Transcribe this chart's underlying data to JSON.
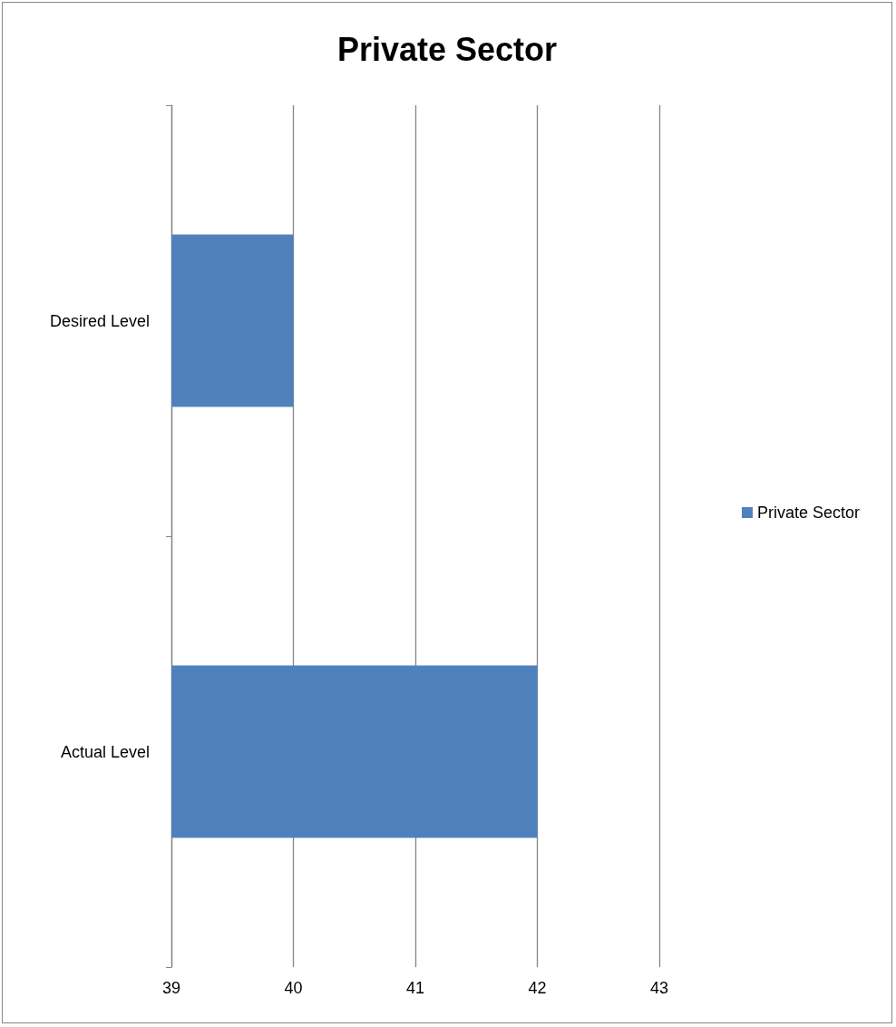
{
  "chart_data": {
    "type": "bar",
    "title": "Private Sector",
    "orientation": "horizontal",
    "categories": [
      "Desired Level",
      "Actual Level"
    ],
    "series": [
      {
        "name": "Private Sector",
        "color": "#4f81bd",
        "values": [
          40,
          42
        ]
      }
    ],
    "xlim": [
      39,
      43
    ],
    "xticks": [
      39,
      40,
      41,
      42,
      43
    ],
    "grid": "x",
    "legend": "right"
  }
}
